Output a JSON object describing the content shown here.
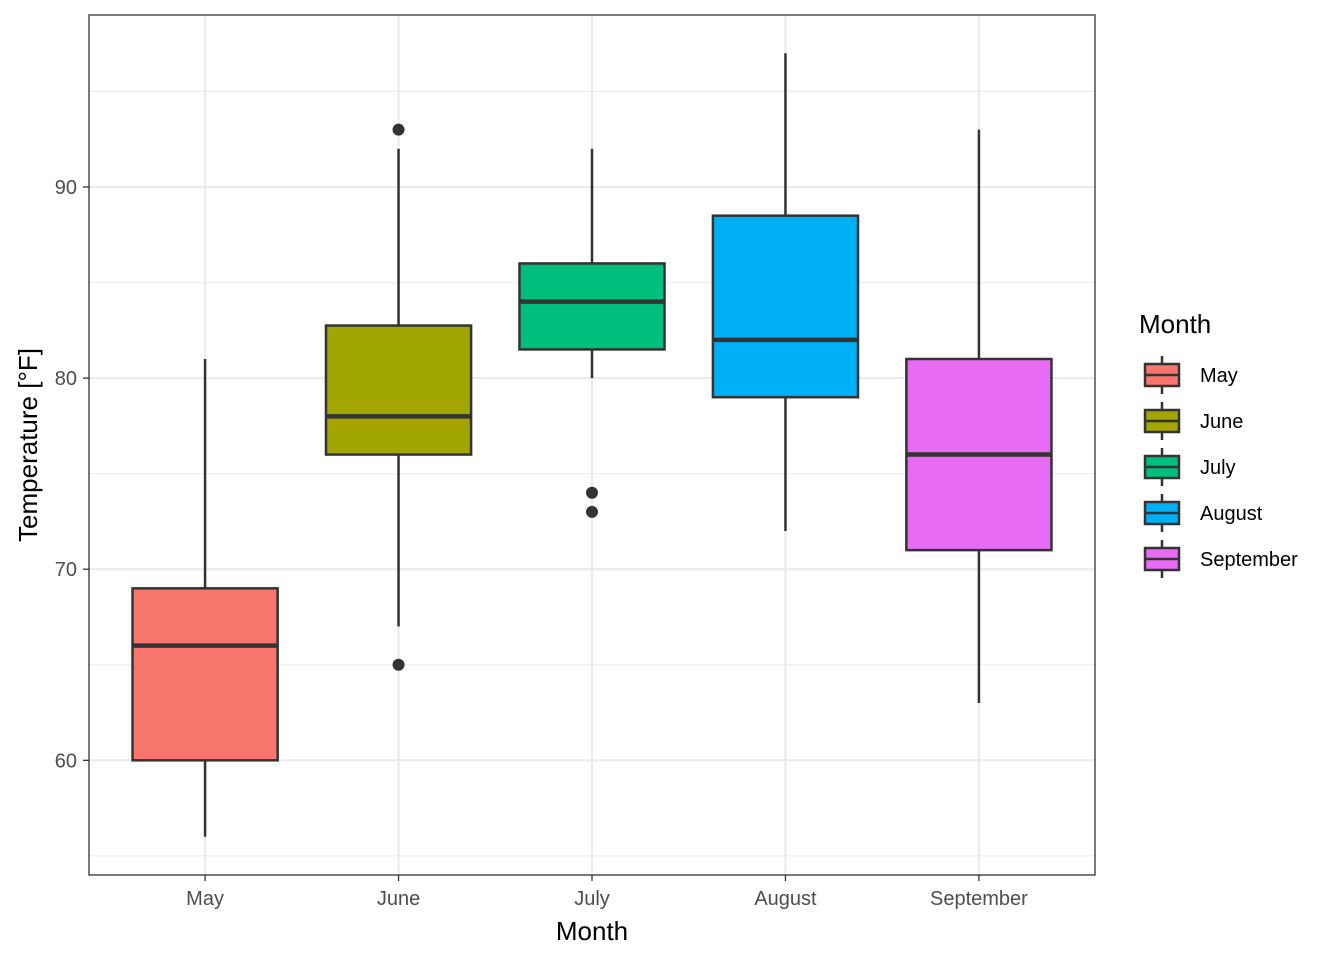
{
  "chart_data": {
    "type": "boxplot",
    "title": "",
    "xlabel": "Month",
    "ylabel": "Temperature [°F]",
    "ylim": [
      54,
      99
    ],
    "yticks": [
      60,
      70,
      80,
      90
    ],
    "grid": true,
    "legend": {
      "title": "Month",
      "position": "right"
    },
    "categories": [
      "May",
      "June",
      "July",
      "August",
      "September"
    ],
    "boxes": [
      {
        "name": "May",
        "color": "#F8766D",
        "whisker_low": 56,
        "q1": 60,
        "median": 66,
        "q3": 69,
        "whisker_high": 81,
        "outliers": []
      },
      {
        "name": "June",
        "color": "#A3A500",
        "whisker_low": 67,
        "q1": 76,
        "median": 78,
        "q3": 82.75,
        "whisker_high": 92,
        "outliers": [
          93,
          65
        ]
      },
      {
        "name": "July",
        "color": "#00BF7D",
        "whisker_low": 80,
        "q1": 81.5,
        "median": 84,
        "q3": 86,
        "whisker_high": 92,
        "outliers": [
          74,
          73
        ]
      },
      {
        "name": "August",
        "color": "#00B0F6",
        "whisker_low": 72,
        "q1": 79,
        "median": 82,
        "q3": 88.5,
        "whisker_high": 97,
        "outliers": []
      },
      {
        "name": "September",
        "color": "#E76BF3",
        "whisker_low": 63,
        "q1": 71,
        "median": 76,
        "q3": 81,
        "whisker_high": 93,
        "outliers": []
      }
    ]
  }
}
